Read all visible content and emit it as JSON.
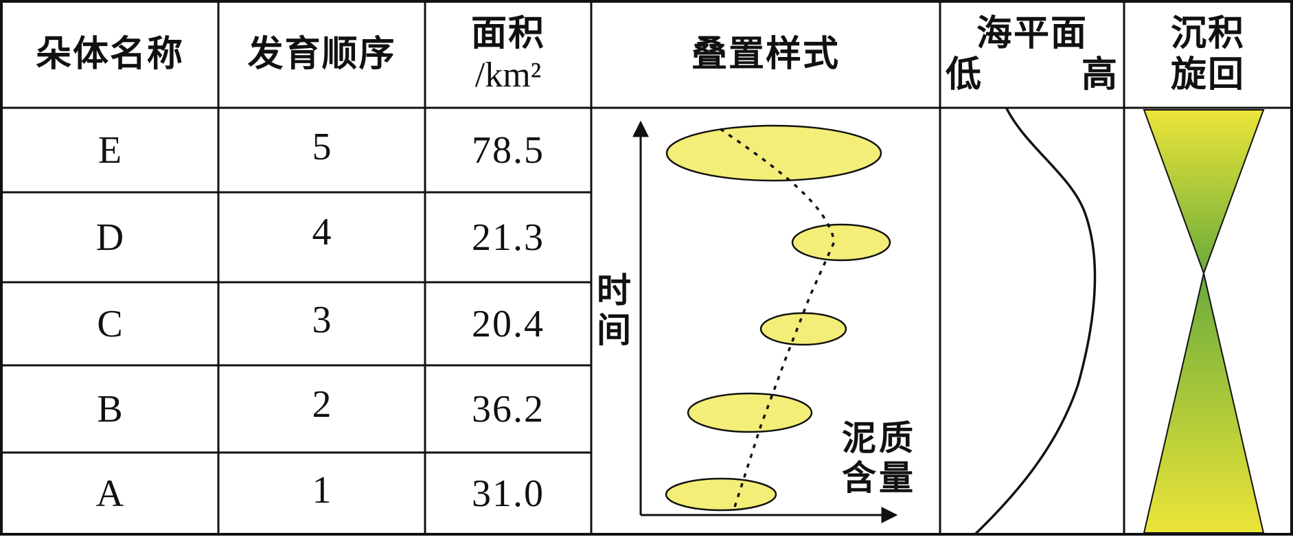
{
  "headers": {
    "name": "朵体名称",
    "order": "发育顺序",
    "area_line1": "面积",
    "area_line2": "/km²",
    "stacking": "叠置样式",
    "sea_title": "海平面",
    "sea_low": "低",
    "sea_high": "高",
    "cycle_line1": "沉积",
    "cycle_line2": "旋回"
  },
  "rows": [
    {
      "name": "E",
      "order": "5",
      "area": "78.5"
    },
    {
      "name": "D",
      "order": "4",
      "area": "21.3"
    },
    {
      "name": "C",
      "order": "3",
      "area": "20.4"
    },
    {
      "name": "B",
      "order": "2",
      "area": "36.2"
    },
    {
      "name": "A",
      "order": "1",
      "area": "31.0"
    }
  ],
  "stacking_chart": {
    "y_axis_line1": "时",
    "y_axis_line2": "间",
    "x_axis_line1": "泥质",
    "x_axis_line2": "含量",
    "lobe_fill": "#f3ee78",
    "lobe_stroke": "#111111"
  },
  "cycle_colors": {
    "yellow": "#ece539",
    "green": "#6aab3c"
  }
}
